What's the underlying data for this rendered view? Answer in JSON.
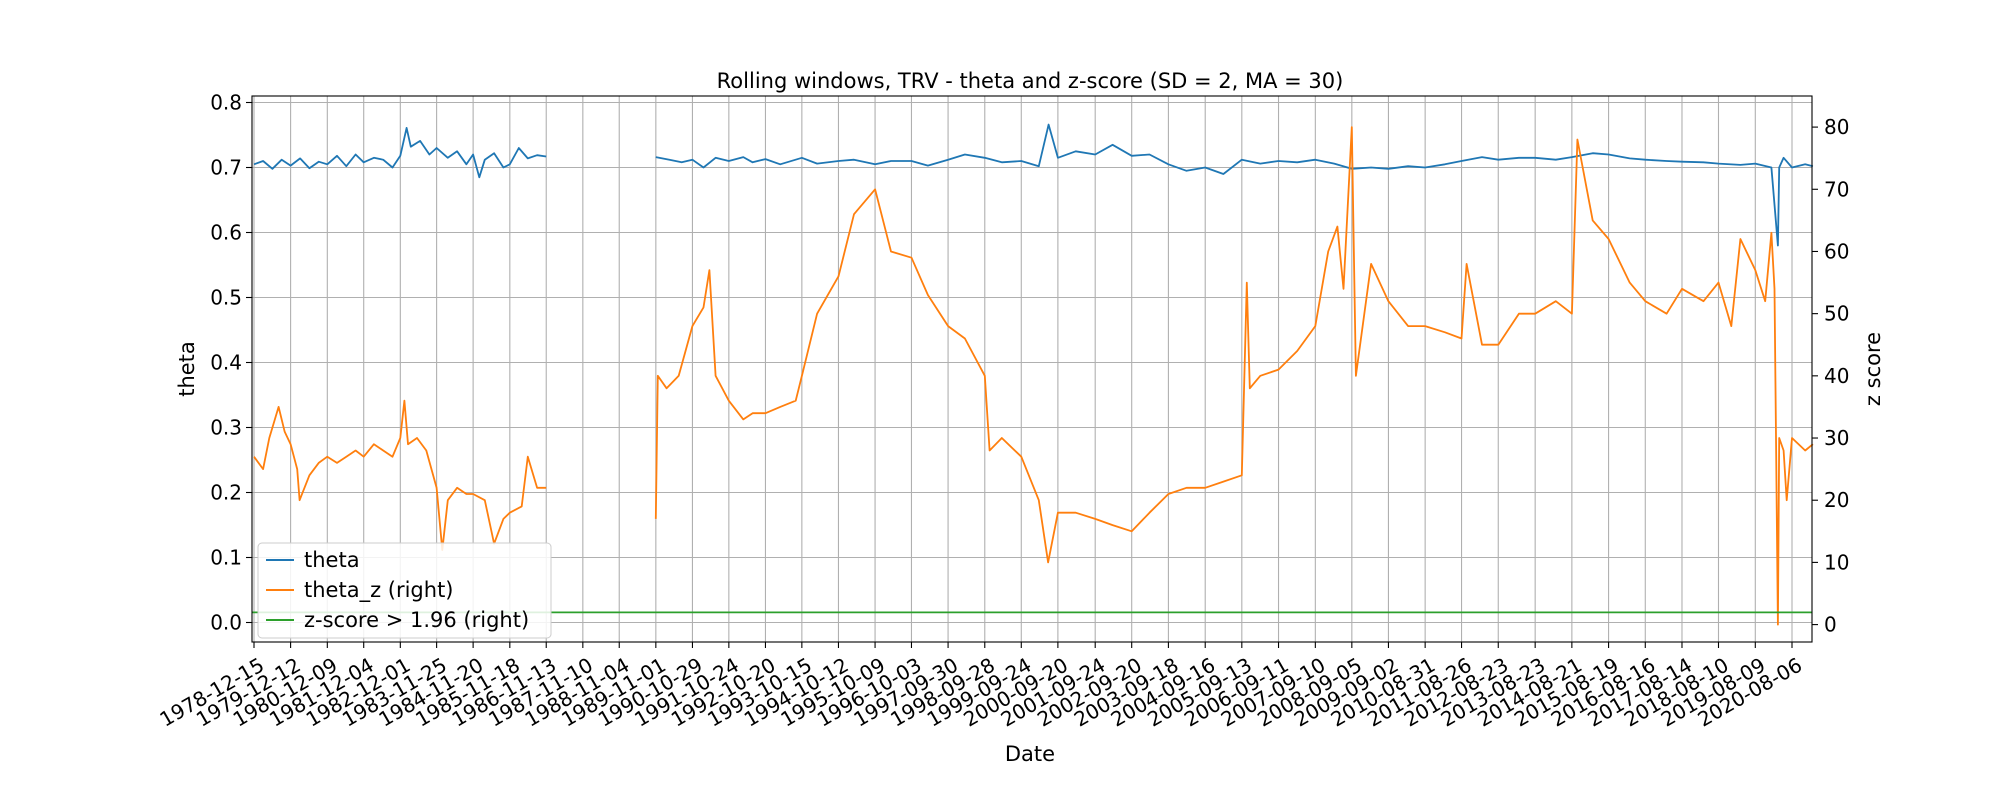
{
  "chart_data": {
    "type": "line",
    "title": "Rolling windows, TRV - theta and z-score (SD = 2, MA = 30)",
    "xlabel": "Date",
    "ylabel": "theta",
    "ylabel_right": "z score",
    "x_tick_labels": [
      "1978-12-15",
      "1979-12-12",
      "1980-12-09",
      "1981-12-04",
      "1982-12-01",
      "1983-11-25",
      "1984-11-20",
      "1985-11-18",
      "1986-11-13",
      "1987-11-10",
      "1988-11-04",
      "1989-11-01",
      "1990-10-29",
      "1991-10-24",
      "1992-10-20",
      "1993-10-15",
      "1994-10-12",
      "1995-10-09",
      "1996-10-03",
      "1997-09-30",
      "1998-09-28",
      "1999-09-24",
      "2000-09-20",
      "2001-09-24",
      "2002-09-20",
      "2003-09-18",
      "2004-09-16",
      "2005-09-13",
      "2006-09-11",
      "2007-09-10",
      "2008-09-05",
      "2009-09-02",
      "2010-08-31",
      "2011-08-26",
      "2012-08-23",
      "2013-08-23",
      "2014-08-21",
      "2015-08-19",
      "2016-08-16",
      "2017-08-14",
      "2018-08-10",
      "2019-08-09",
      "2020-08-06"
    ],
    "y_left": {
      "ticks": [
        "0.0",
        "0.1",
        "0.2",
        "0.3",
        "0.4",
        "0.5",
        "0.6",
        "0.7",
        "0.8"
      ],
      "ylim": [
        -0.03,
        0.81
      ]
    },
    "y_right": {
      "ticks": [
        "0",
        "10",
        "20",
        "30",
        "40",
        "50",
        "60",
        "70",
        "80"
      ],
      "ylim": [
        -2.8,
        85
      ]
    },
    "grid": true,
    "legend_position": "lower-left",
    "series": [
      {
        "name": "theta",
        "axis": "left",
        "color": "#1f77b4",
        "segments": [
          [
            [
              "1978-12-15",
              0.705
            ],
            [
              "1979-03-15",
              0.71
            ],
            [
              "1979-06-15",
              0.698
            ],
            [
              "1979-09-15",
              0.712
            ],
            [
              "1979-12-12",
              0.703
            ],
            [
              "1980-03-15",
              0.714
            ],
            [
              "1980-06-15",
              0.699
            ],
            [
              "1980-09-15",
              0.709
            ],
            [
              "1980-12-09",
              0.705
            ],
            [
              "1981-03-15",
              0.718
            ],
            [
              "1981-06-15",
              0.702
            ],
            [
              "1981-09-15",
              0.72
            ],
            [
              "1981-12-04",
              0.708
            ],
            [
              "1982-03-15",
              0.715
            ],
            [
              "1982-06-15",
              0.712
            ],
            [
              "1982-09-15",
              0.7
            ],
            [
              "1982-12-01",
              0.718
            ],
            [
              "1983-02-01",
              0.761
            ],
            [
              "1983-03-15",
              0.732
            ],
            [
              "1983-06-15",
              0.741
            ],
            [
              "1983-09-15",
              0.72
            ],
            [
              "1983-11-25",
              0.73
            ],
            [
              "1984-03-15",
              0.715
            ],
            [
              "1984-06-15",
              0.725
            ],
            [
              "1984-09-15",
              0.705
            ],
            [
              "1984-11-20",
              0.72
            ],
            [
              "1985-01-20",
              0.685
            ],
            [
              "1985-03-15",
              0.712
            ],
            [
              "1985-06-15",
              0.722
            ],
            [
              "1985-09-15",
              0.7
            ],
            [
              "1985-11-18",
              0.705
            ],
            [
              "1986-02-15",
              0.73
            ],
            [
              "1986-05-15",
              0.714
            ],
            [
              "1986-08-15",
              0.719
            ],
            [
              "1986-11-13",
              0.717
            ]
          ],
          [
            [
              "1989-11-01",
              0.716
            ],
            [
              "1990-03-15",
              0.712
            ],
            [
              "1990-07-15",
              0.708
            ],
            [
              "1990-10-29",
              0.712
            ],
            [
              "1991-02-15",
              0.7
            ],
            [
              "1991-06-15",
              0.715
            ],
            [
              "1991-10-24",
              0.71
            ],
            [
              "1992-03-15",
              0.716
            ],
            [
              "1992-06-15",
              0.708
            ],
            [
              "1992-10-20",
              0.713
            ],
            [
              "1993-03-15",
              0.705
            ],
            [
              "1993-10-15",
              0.715
            ],
            [
              "1994-03-15",
              0.706
            ],
            [
              "1994-10-12",
              0.71
            ],
            [
              "1995-03-15",
              0.712
            ],
            [
              "1995-10-09",
              0.705
            ],
            [
              "1996-03-15",
              0.71
            ],
            [
              "1996-10-03",
              0.71
            ],
            [
              "1997-03-15",
              0.703
            ],
            [
              "1997-09-30",
              0.712
            ],
            [
              "1998-03-15",
              0.72
            ],
            [
              "1998-09-28",
              0.715
            ],
            [
              "1999-03-15",
              0.708
            ],
            [
              "1999-09-24",
              0.71
            ],
            [
              "2000-03-15",
              0.702
            ],
            [
              "2000-06-20",
              0.766
            ],
            [
              "2000-09-20",
              0.715
            ],
            [
              "2001-03-15",
              0.725
            ],
            [
              "2001-09-24",
              0.72
            ],
            [
              "2002-03-15",
              0.735
            ],
            [
              "2002-09-20",
              0.718
            ],
            [
              "2003-03-15",
              0.72
            ],
            [
              "2003-09-18",
              0.705
            ],
            [
              "2004-03-15",
              0.695
            ],
            [
              "2004-09-16",
              0.7
            ],
            [
              "2005-03-15",
              0.69
            ],
            [
              "2005-09-13",
              0.712
            ],
            [
              "2006-03-15",
              0.706
            ],
            [
              "2006-09-11",
              0.71
            ],
            [
              "2007-03-15",
              0.708
            ],
            [
              "2007-09-10",
              0.712
            ],
            [
              "2008-03-15",
              0.706
            ],
            [
              "2008-09-05",
              0.698
            ],
            [
              "2009-03-15",
              0.7
            ],
            [
              "2009-09-02",
              0.698
            ],
            [
              "2010-03-15",
              0.702
            ],
            [
              "2010-08-31",
              0.7
            ],
            [
              "2011-03-15",
              0.705
            ],
            [
              "2011-08-26",
              0.71
            ],
            [
              "2012-03-15",
              0.716
            ],
            [
              "2012-08-23",
              0.712
            ],
            [
              "2013-03-15",
              0.715
            ],
            [
              "2013-08-23",
              0.715
            ],
            [
              "2014-03-15",
              0.712
            ],
            [
              "2014-08-21",
              0.716
            ],
            [
              "2015-03-15",
              0.722
            ],
            [
              "2015-08-19",
              0.72
            ],
            [
              "2016-03-15",
              0.714
            ],
            [
              "2016-08-16",
              0.712
            ],
            [
              "2017-03-15",
              0.71
            ],
            [
              "2017-08-14",
              0.709
            ],
            [
              "2018-03-15",
              0.708
            ],
            [
              "2018-08-10",
              0.706
            ],
            [
              "2019-03-15",
              0.704
            ],
            [
              "2019-08-09",
              0.706
            ],
            [
              "2020-01-15",
              0.7
            ],
            [
              "2020-03-20",
              0.58
            ],
            [
              "2020-04-01",
              0.7
            ],
            [
              "2020-05-15",
              0.715
            ],
            [
              "2020-08-06",
              0.7
            ],
            [
              "2020-12-15",
              0.705
            ],
            [
              "2021-03-01",
              0.702
            ]
          ]
        ]
      },
      {
        "name": "theta_z (right)",
        "axis": "right",
        "color": "#ff7f0e",
        "segments": [
          [
            [
              "1978-12-15",
              27
            ],
            [
              "1979-03-15",
              25
            ],
            [
              "1979-05-15",
              30
            ],
            [
              "1979-08-15",
              35
            ],
            [
              "1979-10-15",
              31
            ],
            [
              "1979-12-12",
              29
            ],
            [
              "1980-02-15",
              25
            ],
            [
              "1980-03-10",
              20
            ],
            [
              "1980-06-15",
              24
            ],
            [
              "1980-09-15",
              26
            ],
            [
              "1980-12-09",
              27
            ],
            [
              "1981-03-15",
              26
            ],
            [
              "1981-06-15",
              27
            ],
            [
              "1981-09-15",
              28
            ],
            [
              "1981-12-04",
              27
            ],
            [
              "1982-03-15",
              29
            ],
            [
              "1982-06-15",
              28
            ],
            [
              "1982-09-15",
              27
            ],
            [
              "1982-12-01",
              30
            ],
            [
              "1983-01-10",
              36
            ],
            [
              "1983-02-15",
              29
            ],
            [
              "1983-05-15",
              30
            ],
            [
              "1983-08-15",
              28
            ],
            [
              "1983-11-25",
              22
            ],
            [
              "1984-01-20",
              12
            ],
            [
              "1984-03-15",
              20
            ],
            [
              "1984-06-15",
              22
            ],
            [
              "1984-09-15",
              21
            ],
            [
              "1984-11-20",
              21
            ],
            [
              "1985-03-15",
              20
            ],
            [
              "1985-06-15",
              13
            ],
            [
              "1985-09-15",
              17
            ],
            [
              "1985-11-18",
              18
            ],
            [
              "1986-03-15",
              19
            ],
            [
              "1986-05-15",
              27
            ],
            [
              "1986-08-15",
              22
            ],
            [
              "1986-11-13",
              22
            ]
          ],
          [
            [
              "1989-11-01",
              17
            ],
            [
              "1989-11-20",
              40
            ],
            [
              "1990-02-15",
              38
            ],
            [
              "1990-06-15",
              40
            ],
            [
              "1990-10-29",
              48
            ],
            [
              "1991-02-15",
              51
            ],
            [
              "1991-04-15",
              57
            ],
            [
              "1991-06-15",
              40
            ],
            [
              "1991-10-24",
              36
            ],
            [
              "1992-03-15",
              33
            ],
            [
              "1992-06-15",
              34
            ],
            [
              "1992-10-20",
              34
            ],
            [
              "1993-03-15",
              35
            ],
            [
              "1993-08-15",
              36
            ],
            [
              "1993-10-15",
              40
            ],
            [
              "1994-03-15",
              50
            ],
            [
              "1994-10-12",
              56
            ],
            [
              "1995-03-15",
              66
            ],
            [
              "1995-10-09",
              70
            ],
            [
              "1996-03-15",
              60
            ],
            [
              "1996-10-03",
              59
            ],
            [
              "1997-03-15",
              53
            ],
            [
              "1997-09-30",
              48
            ],
            [
              "1998-03-15",
              46
            ],
            [
              "1998-09-28",
              40
            ],
            [
              "1998-11-15",
              28
            ],
            [
              "1999-03-15",
              30
            ],
            [
              "1999-09-24",
              27
            ],
            [
              "2000-03-15",
              20
            ],
            [
              "2000-06-15",
              10
            ],
            [
              "2000-09-20",
              18
            ],
            [
              "2001-03-15",
              18
            ],
            [
              "2001-09-24",
              17
            ],
            [
              "2002-03-15",
              16
            ],
            [
              "2002-09-20",
              15
            ],
            [
              "2003-03-15",
              18
            ],
            [
              "2003-09-18",
              21
            ],
            [
              "2004-03-15",
              22
            ],
            [
              "2004-09-16",
              22
            ],
            [
              "2005-03-15",
              23
            ],
            [
              "2005-09-13",
              24
            ],
            [
              "2005-11-01",
              55
            ],
            [
              "2005-12-01",
              38
            ],
            [
              "2006-03-15",
              40
            ],
            [
              "2006-09-11",
              41
            ],
            [
              "2007-03-15",
              44
            ],
            [
              "2007-09-10",
              48
            ],
            [
              "2008-01-15",
              60
            ],
            [
              "2008-04-15",
              64
            ],
            [
              "2008-06-15",
              54
            ],
            [
              "2008-09-05",
              80
            ],
            [
              "2008-10-15",
              40
            ],
            [
              "2009-03-15",
              58
            ],
            [
              "2009-09-02",
              52
            ],
            [
              "2010-03-15",
              48
            ],
            [
              "2010-08-31",
              48
            ],
            [
              "2011-03-15",
              47
            ],
            [
              "2011-08-26",
              46
            ],
            [
              "2011-10-15",
              58
            ],
            [
              "2012-03-15",
              45
            ],
            [
              "2012-08-23",
              45
            ],
            [
              "2013-03-15",
              50
            ],
            [
              "2013-08-23",
              50
            ],
            [
              "2014-03-15",
              52
            ],
            [
              "2014-08-21",
              50
            ],
            [
              "2014-10-15",
              78
            ],
            [
              "2015-03-15",
              65
            ],
            [
              "2015-08-19",
              62
            ],
            [
              "2016-03-15",
              55
            ],
            [
              "2016-08-16",
              52
            ],
            [
              "2017-03-15",
              50
            ],
            [
              "2017-08-14",
              54
            ],
            [
              "2018-03-15",
              52
            ],
            [
              "2018-08-10",
              55
            ],
            [
              "2018-12-15",
              48
            ],
            [
              "2019-03-15",
              62
            ],
            [
              "2019-08-09",
              57
            ],
            [
              "2019-11-15",
              52
            ],
            [
              "2020-01-15",
              63
            ],
            [
              "2020-02-15",
              54
            ],
            [
              "2020-03-20",
              0
            ],
            [
              "2020-04-01",
              30
            ],
            [
              "2020-05-15",
              28
            ],
            [
              "2020-06-15",
              20
            ],
            [
              "2020-08-06",
              30
            ],
            [
              "2020-12-15",
              28
            ],
            [
              "2021-03-01",
              29
            ]
          ]
        ]
      },
      {
        "name": "z-score > 1.96 (right)",
        "axis": "right",
        "color": "#2ca02c",
        "constant": 1.96
      }
    ]
  }
}
